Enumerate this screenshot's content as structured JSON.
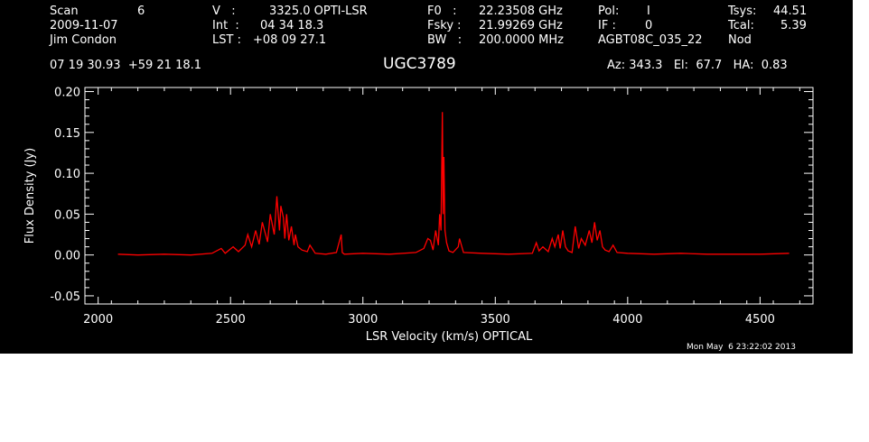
{
  "header": {
    "scan_label": "Scan",
    "scan_value": "6",
    "date": "2009-11-07",
    "observer": "Jim Condon",
    "v_label": "V   :",
    "v_value": "3325.0 OPTI-LSR",
    "int_label": "Int  :",
    "int_value": "04 34 18.3",
    "lst_label": "LST :",
    "lst_value": "+08 09 27.1",
    "f0_label": "F0   :",
    "f0_value": "22.23508 GHz",
    "fsky_label": "Fsky :",
    "fsky_value": "21.99269 GHz",
    "bw_label": "BW   :",
    "bw_value": "200.0000 MHz",
    "pol_label": "Pol:",
    "pol_value": "I",
    "if_label": "IF :",
    "if_value": "0",
    "project": "AGBT08C_035_22",
    "tsys_label": "Tsys:",
    "tsys_value": "44.51",
    "tcal_label": "Tcal:",
    "tcal_value": "5.39",
    "mode": "Nod",
    "coords": "07 19 30.93  +59 21 18.1",
    "source": "UGC3789",
    "az_el_ha": "Az: 343.3   El:  67.7   HA:  0.83",
    "timestamp": "Mon May  6 23:22:02 2013"
  },
  "chart_data": {
    "type": "line",
    "xlabel": "LSR Velocity (km/s) OPTICAL",
    "ylabel": "Flux Density (Jy)",
    "xlim": [
      1950,
      4700
    ],
    "ylim": [
      -0.06,
      0.205
    ],
    "x_ticks": [
      2000,
      2500,
      3000,
      3500,
      4000,
      4500
    ],
    "x_tick_labels": [
      "2000",
      "2500",
      "3000",
      "3500",
      "4000",
      "4500"
    ],
    "y_ticks": [
      -0.05,
      0.0,
      0.05,
      0.1,
      0.15,
      0.2
    ],
    "y_tick_labels": [
      "-0.05",
      "0.00",
      "0.05",
      "0.10",
      "0.15",
      "0.20"
    ],
    "line_color": "#ff0000",
    "series": [
      {
        "x": [
          2075,
          2150,
          2250,
          2350,
          2430,
          2465,
          2480,
          2510,
          2530,
          2555,
          2565,
          2580,
          2595,
          2608,
          2620,
          2640,
          2650,
          2665,
          2675,
          2685,
          2690,
          2700,
          2705,
          2712,
          2720,
          2730,
          2740,
          2745,
          2755,
          2770,
          2790,
          2800,
          2820,
          2860,
          2900,
          2918,
          2922,
          2930,
          3000,
          3100,
          3200,
          3230,
          3245,
          3255,
          3265,
          3275,
          3285,
          3290,
          3295,
          3300,
          3303,
          3306,
          3310,
          3316,
          3325,
          3340,
          3360,
          3365,
          3380,
          3450,
          3550,
          3640,
          3655,
          3665,
          3680,
          3700,
          3715,
          3725,
          3738,
          3745,
          3755,
          3765,
          3775,
          3790,
          3802,
          3815,
          3825,
          3840,
          3855,
          3865,
          3875,
          3885,
          3895,
          3905,
          3915,
          3930,
          3945,
          3960,
          4000,
          4100,
          4200,
          4300,
          4400,
          4500,
          4610
        ],
        "values": [
          0.001,
          0.0,
          0.001,
          0.0,
          0.002,
          0.008,
          0.002,
          0.01,
          0.004,
          0.012,
          0.025,
          0.01,
          0.03,
          0.013,
          0.04,
          0.016,
          0.05,
          0.025,
          0.072,
          0.03,
          0.06,
          0.045,
          0.02,
          0.05,
          0.018,
          0.035,
          0.012,
          0.025,
          0.01,
          0.006,
          0.004,
          0.012,
          0.002,
          0.001,
          0.003,
          0.025,
          0.003,
          0.001,
          0.002,
          0.001,
          0.003,
          0.008,
          0.02,
          0.018,
          0.006,
          0.03,
          0.012,
          0.05,
          0.03,
          0.175,
          0.05,
          0.12,
          0.03,
          0.015,
          0.005,
          0.003,
          0.01,
          0.02,
          0.003,
          0.002,
          0.001,
          0.002,
          0.015,
          0.005,
          0.01,
          0.004,
          0.02,
          0.01,
          0.025,
          0.008,
          0.03,
          0.01,
          0.005,
          0.003,
          0.035,
          0.008,
          0.02,
          0.012,
          0.03,
          0.015,
          0.04,
          0.018,
          0.03,
          0.01,
          0.006,
          0.004,
          0.012,
          0.003,
          0.002,
          0.001,
          0.002,
          0.001,
          0.001,
          0.001,
          0.002
        ]
      }
    ]
  }
}
